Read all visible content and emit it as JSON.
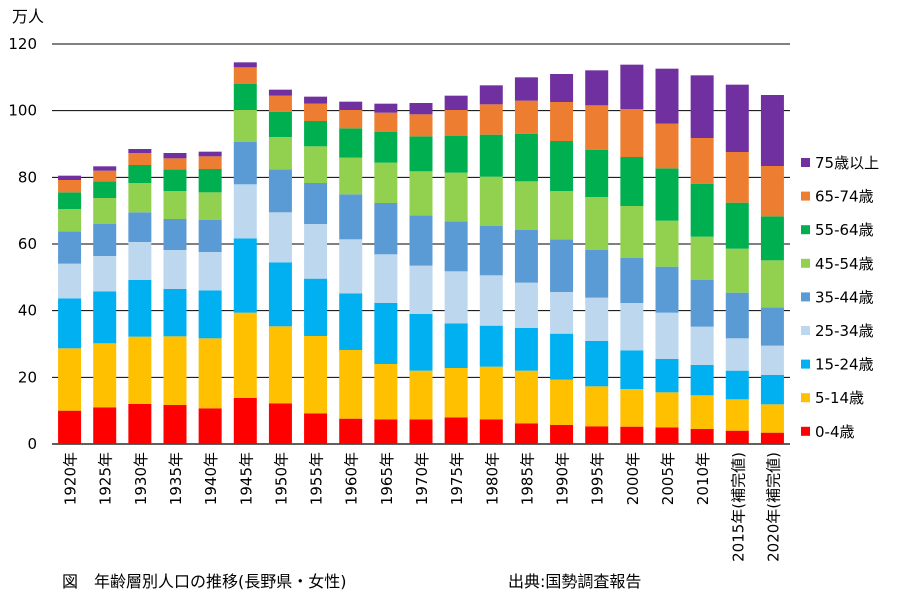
{
  "chart_data": {
    "type": "bar",
    "stacked": true,
    "title": "",
    "ylabel": "万人",
    "xlabel": "",
    "ylim": [
      0,
      120
    ],
    "yticks": [
      0,
      20,
      40,
      60,
      80,
      100,
      120
    ],
    "grid": "horizontal",
    "legend_position": "right",
    "categories": [
      "1920年",
      "1925年",
      "1930年",
      "1935年",
      "1940年",
      "1945年",
      "1950年",
      "1955年",
      "1960年",
      "1965年",
      "1970年",
      "1975年",
      "1980年",
      "1985年",
      "1990年",
      "1995年",
      "2000年",
      "2005年",
      "2010年",
      "2015年(補完値)",
      "2020年(補完値)"
    ],
    "series": [
      {
        "name": "0-4歳",
        "color": "#ff0000",
        "values": [
          10.0,
          11.0,
          12.0,
          11.7,
          10.7,
          13.8,
          12.2,
          9.2,
          7.6,
          7.4,
          7.4,
          8.0,
          7.4,
          6.2,
          5.7,
          5.3,
          5.2,
          5.0,
          4.5,
          4.0,
          3.4
        ]
      },
      {
        "name": "5-14歳",
        "color": "#ffc000",
        "values": [
          18.7,
          19.2,
          20.2,
          20.6,
          21.0,
          25.6,
          23.1,
          23.2,
          20.6,
          16.6,
          14.6,
          14.8,
          15.8,
          15.8,
          13.6,
          12.0,
          11.3,
          10.5,
          10.1,
          9.4,
          8.5
        ]
      },
      {
        "name": "15-24歳",
        "color": "#00b0f0",
        "values": [
          15.0,
          15.6,
          17.0,
          14.2,
          14.4,
          22.3,
          19.2,
          17.2,
          17.0,
          18.3,
          17.0,
          13.4,
          12.3,
          12.8,
          13.8,
          13.6,
          11.6,
          10.0,
          9.1,
          8.6,
          8.8
        ]
      },
      {
        "name": "25-34歳",
        "color": "#bdd7ee",
        "values": [
          10.4,
          10.6,
          11.4,
          11.7,
          11.5,
          16.2,
          15.0,
          16.4,
          16.2,
          14.6,
          14.5,
          15.6,
          15.1,
          13.6,
          12.5,
          13.0,
          14.2,
          13.9,
          11.5,
          9.7,
          8.8
        ]
      },
      {
        "name": "35-44歳",
        "color": "#5b9bd5",
        "values": [
          9.7,
          9.6,
          8.9,
          9.3,
          9.7,
          12.8,
          12.9,
          12.3,
          13.5,
          15.4,
          15.1,
          15.0,
          14.9,
          15.8,
          15.8,
          14.4,
          13.5,
          13.8,
          14.0,
          13.7,
          11.5
        ]
      },
      {
        "name": "45-54歳",
        "color": "#92d050",
        "values": [
          6.7,
          7.8,
          8.8,
          8.4,
          8.2,
          9.5,
          9.7,
          11.0,
          11.0,
          12.1,
          13.2,
          14.6,
          14.7,
          14.6,
          14.5,
          15.8,
          15.6,
          13.8,
          13.0,
          13.2,
          14.1
        ]
      },
      {
        "name": "55-64歳",
        "color": "#00b050",
        "values": [
          5.0,
          5.0,
          5.4,
          6.5,
          7.0,
          7.8,
          7.6,
          7.6,
          8.8,
          9.2,
          10.5,
          11.0,
          12.6,
          14.3,
          15.0,
          14.2,
          14.7,
          15.7,
          15.9,
          13.8,
          13.2
        ]
      },
      {
        "name": "65-74歳",
        "color": "#ed7d31",
        "values": [
          3.7,
          3.2,
          3.6,
          3.3,
          3.8,
          5.0,
          4.8,
          5.2,
          5.5,
          5.8,
          6.6,
          7.8,
          9.1,
          9.9,
          11.7,
          13.3,
          14.4,
          13.4,
          13.7,
          15.2,
          15.1
        ]
      },
      {
        "name": "75歳以上",
        "color": "#7030a0",
        "values": [
          1.3,
          1.3,
          1.2,
          1.6,
          1.4,
          1.5,
          1.8,
          2.1,
          2.5,
          2.7,
          3.4,
          4.3,
          5.7,
          7.0,
          8.4,
          10.5,
          13.3,
          16.5,
          18.8,
          20.2,
          21.3
        ]
      }
    ]
  },
  "footer": {
    "caption": "図　年齢層別人口の推移(長野県・女性)",
    "source": "出典:国勢調査報告"
  }
}
